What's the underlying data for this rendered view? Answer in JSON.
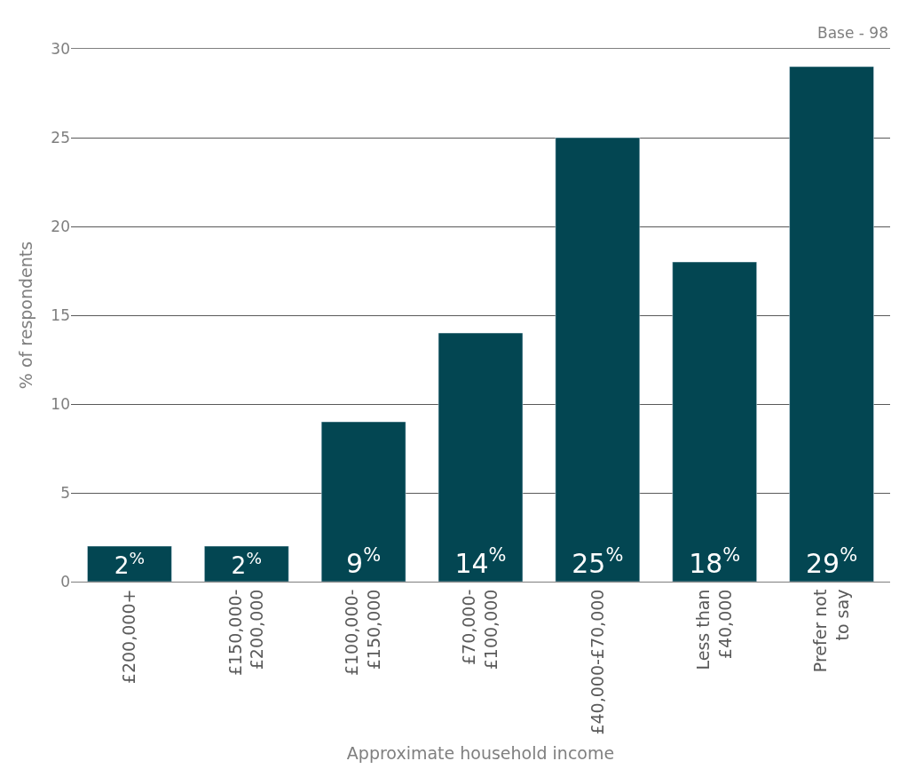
{
  "chart_data": {
    "type": "bar",
    "xlabel": "Approximate household income",
    "ylabel": "% of respondents",
    "categories": [
      "£200,000+",
      "£150,000-\n£200,000",
      "£100,000-\n£150,000",
      "£70,000-\n£100,000",
      "£40,000-£70,000",
      "Less than\n£40,000",
      "Prefer not\nto say"
    ],
    "values": [
      2,
      2,
      9,
      14,
      25,
      18,
      29
    ],
    "value_labels": [
      "2$^{%}$",
      "2$^{%}$",
      "9$^{%}$",
      "14$^{%}$",
      "25$^{%}$",
      "18$^{%}$",
      "29$^{%}$"
    ],
    "color": "#034652",
    "ylim": [
      0,
      30
    ],
    "yticks": [
      0,
      5,
      10,
      15,
      20,
      25,
      30
    ],
    "grid": "y",
    "legend": false,
    "annotations": [
      "Base - 98"
    ]
  }
}
